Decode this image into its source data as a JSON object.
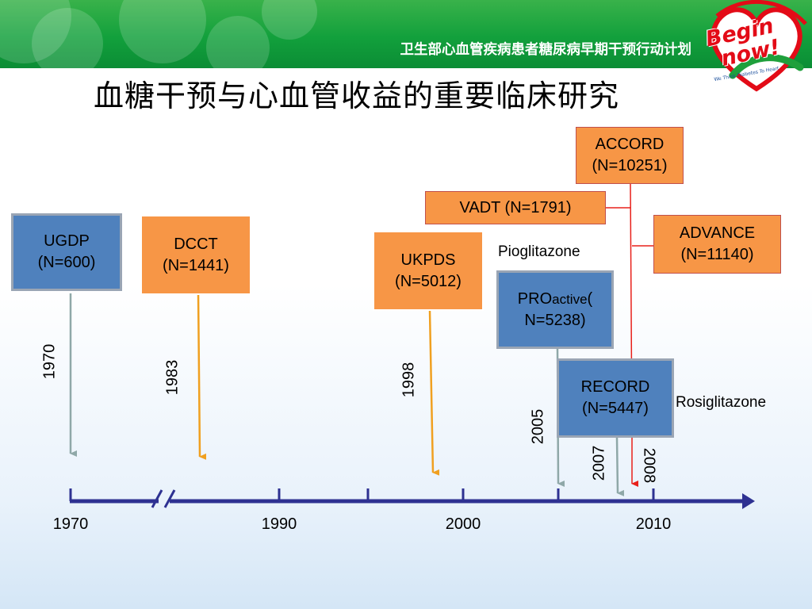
{
  "header": {
    "banner_text": "卫生部心血管疾病患者糖尿病早期干预行动计划",
    "logo_line1": "Begin",
    "logo_line2": "now!",
    "logo_tagline": "We Think Diabetes To Heart"
  },
  "title": "血糖干预与心血管收益的重要临床研究",
  "trials": {
    "ugdp": {
      "name": "UGDP",
      "n": "(N=600)",
      "year": "1970"
    },
    "dcct": {
      "name": "DCCT",
      "n": "(N=1441)",
      "year": "1983"
    },
    "ukpds": {
      "name": "UKPDS",
      "n": "(N=5012)",
      "year": "1998"
    },
    "proactive": {
      "name_pre": "PRO",
      "name_small": "active",
      "name_post": "(",
      "n": "N=5238)",
      "year": "2005"
    },
    "record": {
      "name": "RECORD",
      "n": "(N=5447)",
      "year": "2007"
    },
    "accord": {
      "name": "ACCORD",
      "n": "(N=10251)",
      "year": "2008"
    },
    "vadt": {
      "label": "VADT (N=1791)"
    },
    "advance": {
      "name": "ADVANCE",
      "n": "(N=11140)"
    }
  },
  "drug_labels": {
    "pioglitazone": "Pioglitazone",
    "rosiglitazone": "Rosiglitazone"
  },
  "timeline": {
    "ticks": [
      "1970",
      "1990",
      "2000",
      "2010"
    ]
  },
  "colors": {
    "blue_box": "#4f81bd",
    "orange_box": "#f79646",
    "axis": "#2e3192",
    "arrow_grey": "#8fa8a8",
    "arrow_orange": "#f0a020",
    "arrow_red": "#e8201a"
  }
}
